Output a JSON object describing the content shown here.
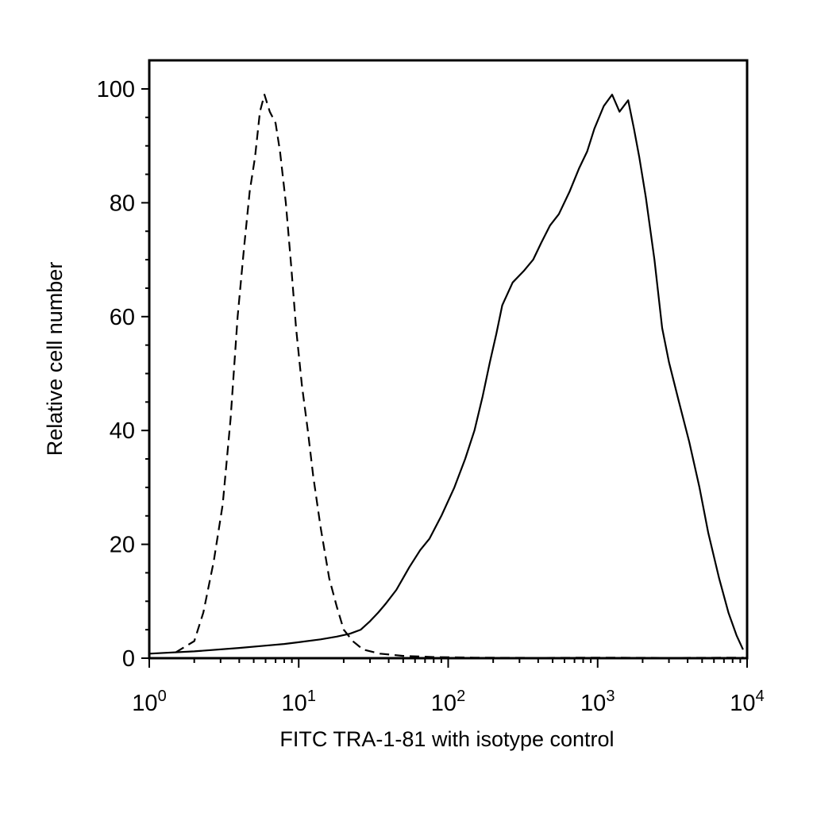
{
  "chart_data": {
    "type": "line",
    "title": "",
    "xlabel": "FITC TRA-1-81 with isotype control",
    "ylabel": "Relative cell number",
    "x_scale": "log",
    "xlim": [
      1,
      10000
    ],
    "ylim": [
      0,
      100
    ],
    "grid": false,
    "x_ticks": [
      {
        "base": "10",
        "exp": "0"
      },
      {
        "base": "10",
        "exp": "1"
      },
      {
        "base": "10",
        "exp": "2"
      },
      {
        "base": "10",
        "exp": "3"
      },
      {
        "base": "10",
        "exp": "4"
      }
    ],
    "y_ticks": [
      "0",
      "20",
      "40",
      "60",
      "80",
      "100"
    ],
    "series": [
      {
        "style": "dashed",
        "color": "#000000",
        "points": [
          [
            1.5,
            1
          ],
          [
            2.0,
            3
          ],
          [
            2.3,
            8
          ],
          [
            2.7,
            17
          ],
          [
            3.1,
            27
          ],
          [
            3.5,
            42
          ],
          [
            3.9,
            60
          ],
          [
            4.3,
            72
          ],
          [
            4.7,
            82
          ],
          [
            5.1,
            88
          ],
          [
            5.5,
            96
          ],
          [
            5.9,
            99
          ],
          [
            6.4,
            96
          ],
          [
            7.0,
            94
          ],
          [
            7.5,
            89
          ],
          [
            8.2,
            80
          ],
          [
            8.9,
            69
          ],
          [
            9.6,
            58
          ],
          [
            10.5,
            48
          ],
          [
            11.5,
            40
          ],
          [
            12.5,
            32
          ],
          [
            14,
            23
          ],
          [
            16,
            14
          ],
          [
            18,
            9
          ],
          [
            20,
            5
          ],
          [
            23,
            3
          ],
          [
            27,
            1.5
          ],
          [
            35,
            0.8
          ],
          [
            50,
            0.4
          ],
          [
            80,
            0.2
          ],
          [
            150,
            0.1
          ],
          [
            400,
            0.05
          ],
          [
            1000,
            0.1
          ],
          [
            3000,
            0.05
          ],
          [
            9500,
            0.1
          ]
        ]
      },
      {
        "style": "solid",
        "color": "#000000",
        "points": [
          [
            1.0,
            0.8
          ],
          [
            2,
            1.2
          ],
          [
            4,
            1.8
          ],
          [
            6,
            2.2
          ],
          [
            8,
            2.5
          ],
          [
            10,
            2.8
          ],
          [
            14,
            3.3
          ],
          [
            18,
            3.8
          ],
          [
            22,
            4.3
          ],
          [
            26,
            5.0
          ],
          [
            30,
            6.5
          ],
          [
            34,
            8.0
          ],
          [
            38,
            9.5
          ],
          [
            45,
            12
          ],
          [
            55,
            16
          ],
          [
            65,
            19
          ],
          [
            75,
            21
          ],
          [
            90,
            25
          ],
          [
            110,
            30
          ],
          [
            130,
            35
          ],
          [
            150,
            40
          ],
          [
            170,
            46
          ],
          [
            190,
            52
          ],
          [
            210,
            57
          ],
          [
            230,
            62
          ],
          [
            270,
            66
          ],
          [
            320,
            68
          ],
          [
            370,
            70
          ],
          [
            420,
            73
          ],
          [
            480,
            76
          ],
          [
            550,
            78
          ],
          [
            650,
            82
          ],
          [
            750,
            86
          ],
          [
            850,
            89
          ],
          [
            950,
            93
          ],
          [
            1100,
            97
          ],
          [
            1250,
            99
          ],
          [
            1400,
            96
          ],
          [
            1600,
            98
          ],
          [
            1750,
            93
          ],
          [
            1900,
            88
          ],
          [
            2100,
            81
          ],
          [
            2400,
            70
          ],
          [
            2700,
            58
          ],
          [
            3000,
            52
          ],
          [
            3500,
            45
          ],
          [
            4100,
            38
          ],
          [
            4800,
            30
          ],
          [
            5500,
            22
          ],
          [
            6500,
            14
          ],
          [
            7500,
            8
          ],
          [
            8500,
            4
          ],
          [
            9400,
            1.5
          ]
        ]
      }
    ]
  }
}
